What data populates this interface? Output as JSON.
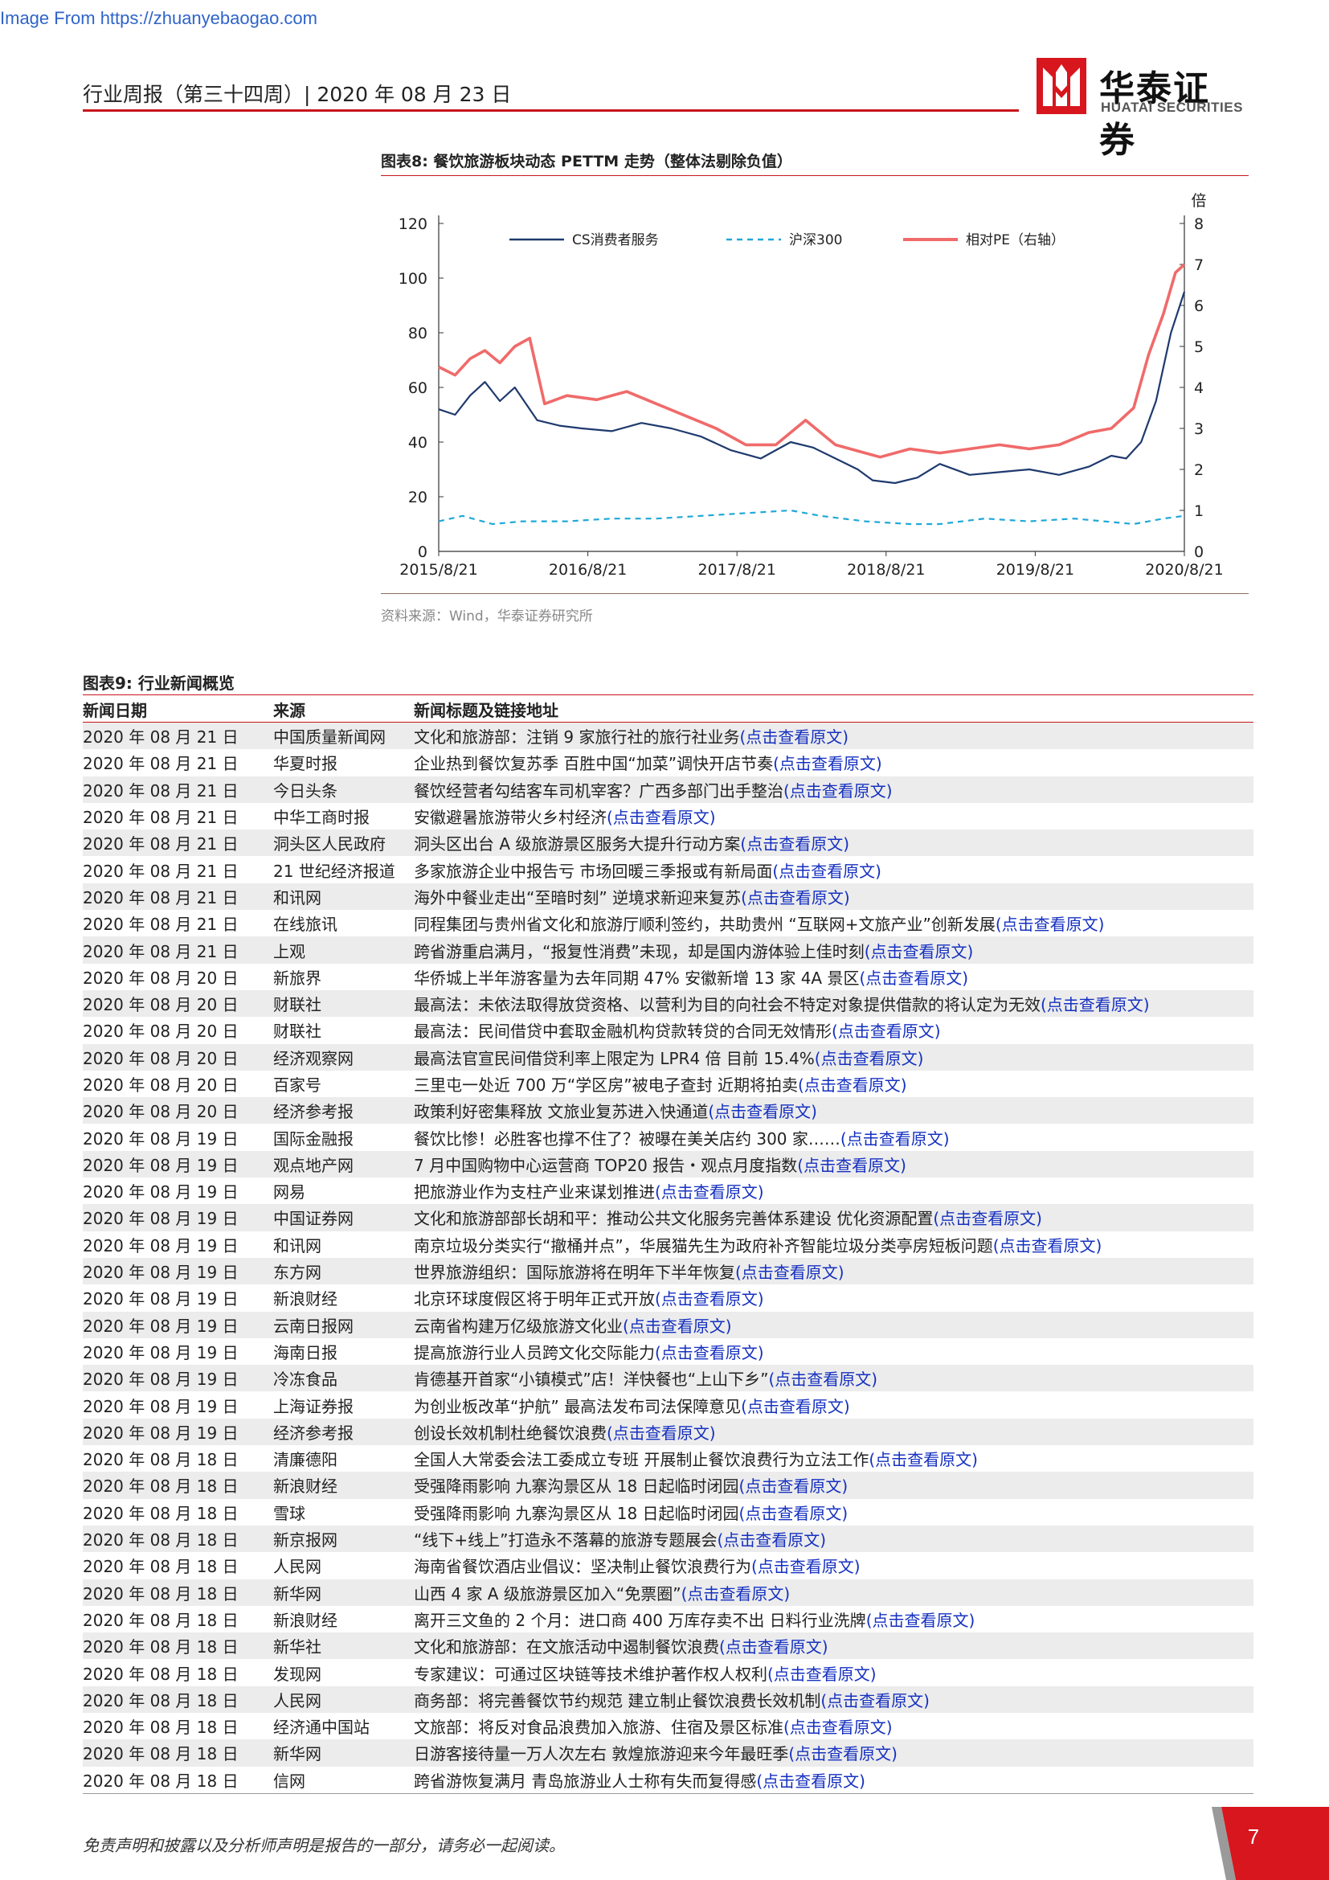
{
  "watermark": "Image From https://zhuanyebaogao.com",
  "header": {
    "title": "行业周报（第三十四周）| 2020 年 08 月 23 日",
    "logo_cn": "华泰证券",
    "logo_en": "HUATAI SECURITIES",
    "accent": "#c8151d"
  },
  "figure8": {
    "title": "图表8:    餐饮旅游板块动态 PETTM 走势（整体法剔除负值）",
    "source": "资料来源：Wind，华泰证券研究所"
  },
  "chart_data": {
    "type": "line",
    "title": "",
    "y2_unit": "倍",
    "x_ticks": [
      "2015/8/21",
      "2016/8/21",
      "2017/8/21",
      "2018/8/21",
      "2019/8/21",
      "2020/8/21"
    ],
    "y_left_ticks": [
      0,
      20,
      40,
      60,
      80,
      100,
      120
    ],
    "y_right_ticks": [
      0,
      1,
      2,
      3,
      4,
      5,
      6,
      7,
      8
    ],
    "ylim": [
      0,
      120
    ],
    "y2lim": [
      0,
      8
    ],
    "legend_position": "top",
    "series": [
      {
        "name": "CS消费者服务",
        "axis": "left",
        "color": "#1f3a6e",
        "style": "solid",
        "x": [
          2015.64,
          2015.75,
          2015.85,
          2015.95,
          2016.05,
          2016.15,
          2016.3,
          2016.45,
          2016.6,
          2016.8,
          2017.0,
          2017.2,
          2017.4,
          2017.6,
          2017.8,
          2018.0,
          2018.15,
          2018.3,
          2018.45,
          2018.55,
          2018.7,
          2018.85,
          2019.0,
          2019.2,
          2019.4,
          2019.6,
          2019.8,
          2020.0,
          2020.15,
          2020.25,
          2020.35,
          2020.45,
          2020.55,
          2020.64
        ],
        "values": [
          52,
          50,
          57,
          62,
          55,
          60,
          48,
          46,
          45,
          44,
          47,
          45,
          42,
          37,
          34,
          40,
          38,
          34,
          30,
          26,
          25,
          27,
          32,
          28,
          29,
          30,
          28,
          31,
          35,
          34,
          40,
          55,
          80,
          95
        ]
      },
      {
        "name": "沪深300",
        "axis": "left",
        "color": "#1fa8d8",
        "style": "dashed",
        "x": [
          2015.64,
          2015.8,
          2016.0,
          2016.2,
          2016.5,
          2016.8,
          2017.1,
          2017.4,
          2017.7,
          2018.0,
          2018.2,
          2018.5,
          2018.8,
          2019.0,
          2019.3,
          2019.6,
          2019.9,
          2020.1,
          2020.3,
          2020.5,
          2020.64
        ],
        "values": [
          11,
          13,
          10,
          11,
          11,
          12,
          12,
          13,
          14,
          15,
          13,
          11,
          10,
          10,
          12,
          11,
          12,
          11,
          10,
          12,
          13
        ]
      },
      {
        "name": "相对PE（右轴）",
        "axis": "right",
        "color": "#f06a6a",
        "style": "solid",
        "x": [
          2015.64,
          2015.75,
          2015.85,
          2015.95,
          2016.05,
          2016.15,
          2016.25,
          2016.35,
          2016.5,
          2016.7,
          2016.9,
          2017.1,
          2017.3,
          2017.5,
          2017.7,
          2017.9,
          2018.1,
          2018.3,
          2018.5,
          2018.6,
          2018.8,
          2019.0,
          2019.2,
          2019.4,
          2019.6,
          2019.8,
          2020.0,
          2020.15,
          2020.3,
          2020.4,
          2020.5,
          2020.58,
          2020.64
        ],
        "values": [
          4.5,
          4.3,
          4.7,
          4.9,
          4.6,
          5.0,
          5.2,
          3.6,
          3.8,
          3.7,
          3.9,
          3.6,
          3.3,
          3.0,
          2.6,
          2.6,
          3.2,
          2.6,
          2.4,
          2.3,
          2.5,
          2.4,
          2.5,
          2.6,
          2.5,
          2.6,
          2.9,
          3.0,
          3.5,
          4.8,
          5.8,
          6.8,
          7.0
        ]
      }
    ]
  },
  "figure9": {
    "title": "图表9:    行业新闻概览",
    "columns": [
      "新闻日期",
      "来源",
      "新闻标题及链接地址"
    ],
    "link_text": "(点击查看原文)",
    "rows": [
      {
        "date": "2020 年 08 月 21 日",
        "source": "中国质量新闻网",
        "title": "文化和旅游部：注销 9 家旅行社的旅行社业务"
      },
      {
        "date": "2020 年 08 月 21 日",
        "source": "华夏时报",
        "title": "企业热到餐饮复苏季  百胜中国“加菜”调快开店节奏"
      },
      {
        "date": "2020 年 08 月 21 日",
        "source": "今日头条",
        "title": "餐饮经营者勾结客车司机宰客？广西多部门出手整治"
      },
      {
        "date": "2020 年 08 月 21 日",
        "source": "中华工商时报",
        "title": "安徽避暑旅游带火乡村经济"
      },
      {
        "date": "2020 年 08 月 21 日",
        "source": "洞头区人民政府",
        "title": "洞头区出台 A 级旅游景区服务大提升行动方案"
      },
      {
        "date": "2020 年 08 月 21 日",
        "source": "21 世纪经济报道",
        "title": "多家旅游企业中报告亏  市场回暖三季报或有新局面"
      },
      {
        "date": "2020 年 08 月 21 日",
        "source": "和讯网",
        "title": "海外中餐业走出“至暗时刻”  逆境求新迎来复苏"
      },
      {
        "date": "2020 年 08 月 21 日",
        "source": "在线旅讯",
        "title": "同程集团与贵州省文化和旅游厅顺利签约，共助贵州  “互联网+文旅产业”创新发展"
      },
      {
        "date": "2020 年 08 月 21 日",
        "source": "上观",
        "title": "跨省游重启满月，“报复性消费”未现，却是国内游体验上佳时刻"
      },
      {
        "date": "2020 年 08 月 20 日",
        "source": "新旅界",
        "title": "华侨城上半年游客量为去年同期 47%  安徽新增 13 家 4A 景区"
      },
      {
        "date": "2020 年 08 月 20 日",
        "source": "财联社",
        "title": "最高法：未依法取得放贷资格、以营利为目的向社会不特定对象提供借款的将认定为无效"
      },
      {
        "date": "2020 年 08 月 20 日",
        "source": "财联社",
        "title": "最高法：民间借贷中套取金融机构贷款转贷的合同无效情形"
      },
      {
        "date": "2020 年 08 月 20 日",
        "source": "经济观察网",
        "title": "最高法官宣民间借贷利率上限定为 LPR4 倍  目前 15.4%"
      },
      {
        "date": "2020 年 08 月 20 日",
        "source": "百家号",
        "title": "三里屯一处近 700 万“学区房”被电子查封  近期将拍卖"
      },
      {
        "date": "2020 年 08 月 20 日",
        "source": "经济参考报",
        "title": "政策利好密集释放  文旅业复苏进入快通道"
      },
      {
        "date": "2020 年 08 月 19 日",
        "source": "国际金融报",
        "title": "餐饮比惨！必胜客也撑不住了？被曝在美关店约 300 家……"
      },
      {
        "date": "2020 年 08 月 19 日",
        "source": "观点地产网",
        "title": "7 月中国购物中心运营商 TOP20 报告・观点月度指数"
      },
      {
        "date": "2020 年 08 月 19 日",
        "source": "网易",
        "title": "把旅游业作为支柱产业来谋划推进"
      },
      {
        "date": "2020 年 08 月 19 日",
        "source": "中国证券网",
        "title": "文化和旅游部部长胡和平：推动公共文化服务完善体系建设  优化资源配置"
      },
      {
        "date": "2020 年 08 月 19 日",
        "source": "和讯网",
        "title": "南京垃圾分类实行“撤桶并点”，华展猫先生为政府补齐智能垃圾分类亭房短板问题"
      },
      {
        "date": "2020 年 08 月 19 日",
        "source": "东方网",
        "title": "世界旅游组织：国际旅游将在明年下半年恢复"
      },
      {
        "date": "2020 年 08 月 19 日",
        "source": "新浪财经",
        "title": "北京环球度假区将于明年正式开放"
      },
      {
        "date": "2020 年 08 月 19 日",
        "source": "云南日报网",
        "title": "云南省构建万亿级旅游文化业"
      },
      {
        "date": "2020 年 08 月 19 日",
        "source": "海南日报",
        "title": "提高旅游行业人员跨文化交际能力"
      },
      {
        "date": "2020 年 08 月 19 日",
        "source": "冷冻食品",
        "title": "肯德基开首家“小镇模式”店！洋快餐也“上山下乡”"
      },
      {
        "date": "2020 年 08 月 19 日",
        "source": "上海证券报",
        "title": "为创业板改革“护航”  最高法发布司法保障意见"
      },
      {
        "date": "2020 年 08 月 19 日",
        "source": "经济参考报",
        "title": "创设长效机制杜绝餐饮浪费"
      },
      {
        "date": "2020 年 08 月 18 日",
        "source": "清廉德阳",
        "title": "全国人大常委会法工委成立专班  开展制止餐饮浪费行为立法工作"
      },
      {
        "date": "2020 年 08 月 18 日",
        "source": "新浪财经",
        "title": "受强降雨影响  九寨沟景区从 18 日起临时闭园"
      },
      {
        "date": "2020 年 08 月 18 日",
        "source": "雪球",
        "title": "受强降雨影响  九寨沟景区从 18 日起临时闭园"
      },
      {
        "date": "2020 年 08 月 18 日",
        "source": "新京报网",
        "title": "“线下+线上”打造永不落幕的旅游专题展会"
      },
      {
        "date": "2020 年 08 月 18 日",
        "source": "人民网",
        "title": "海南省餐饮酒店业倡议：坚决制止餐饮浪费行为"
      },
      {
        "date": "2020 年 08 月 18 日",
        "source": "新华网",
        "title": "山西 4 家 A 级旅游景区加入“免票圈”"
      },
      {
        "date": "2020 年 08 月 18 日",
        "source": "新浪财经",
        "title": "离开三文鱼的 2 个月：进口商 400 万库存卖不出  日料行业洗牌"
      },
      {
        "date": "2020 年 08 月 18 日",
        "source": "新华社",
        "title": "文化和旅游部：在文旅活动中遏制餐饮浪费"
      },
      {
        "date": "2020 年 08 月 18 日",
        "source": "发现网",
        "title": "专家建议：可通过区块链等技术维护著作权人权利"
      },
      {
        "date": "2020 年 08 月 18 日",
        "source": "人民网",
        "title": "商务部：将完善餐饮节约规范  建立制止餐饮浪费长效机制"
      },
      {
        "date": "2020 年 08 月 18 日",
        "source": "经济通中国站",
        "title": "文旅部：将反对食品浪费加入旅游、住宿及景区标准"
      },
      {
        "date": "2020 年 08 月 18 日",
        "source": "新华网",
        "title": "日游客接待量一万人次左右  敦煌旅游迎来今年最旺季"
      },
      {
        "date": "2020 年 08 月 18 日",
        "source": "信网",
        "title": "跨省游恢复满月  青岛旅游业人士称有失而复得感"
      }
    ]
  },
  "footer": {
    "note": "免责声明和披露以及分析师声明是报告的一部分，请务必一起阅读。",
    "page": "7"
  }
}
